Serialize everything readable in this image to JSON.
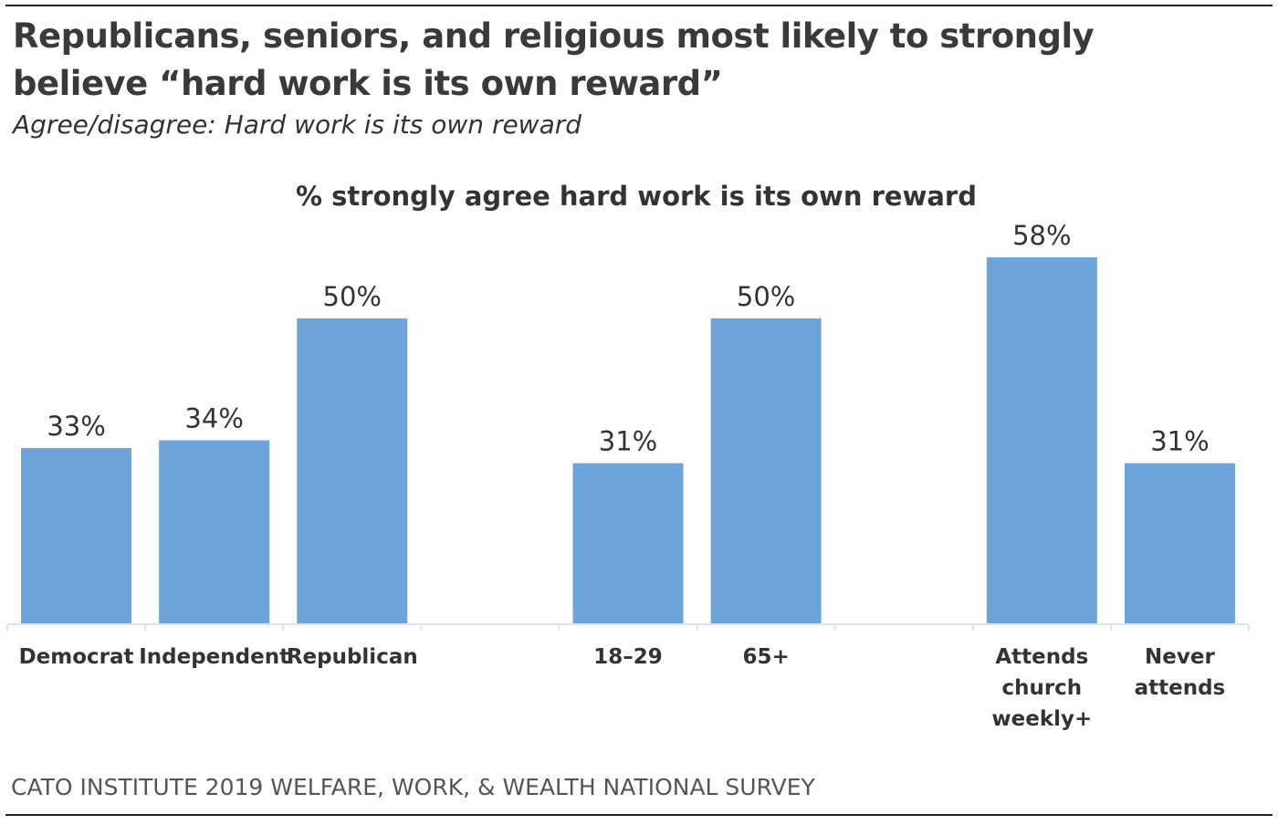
{
  "title": "Republicans, seniors, and religious most likely to strongly believe “hard work is its own reward”",
  "subtitle": "Agree/disagree: Hard work is its own reward",
  "footer": "CATO INSTITUTE 2019 WELFARE, WORK, & WEALTH NATIONAL SURVEY",
  "chart_data": {
    "type": "bar",
    "title": "% strongly agree hard work is its own reward",
    "categories": [
      [
        "Democrat"
      ],
      [
        "Independent"
      ],
      [
        "Republican"
      ],
      [],
      [
        "18–29"
      ],
      [
        "65+"
      ],
      [],
      [
        "Attends",
        "church",
        "weekly+"
      ],
      [
        "Never",
        "attends"
      ]
    ],
    "values": [
      33,
      34,
      50,
      null,
      31,
      50,
      null,
      58,
      31
    ],
    "data_labels": [
      "33%",
      "34%",
      "50%",
      "",
      "31%",
      "50%",
      "",
      "58%",
      "31%"
    ],
    "ylim": [
      10,
      60
    ],
    "grid": false,
    "bar_color": "#6ca3d8",
    "xlabel": "",
    "ylabel": ""
  }
}
